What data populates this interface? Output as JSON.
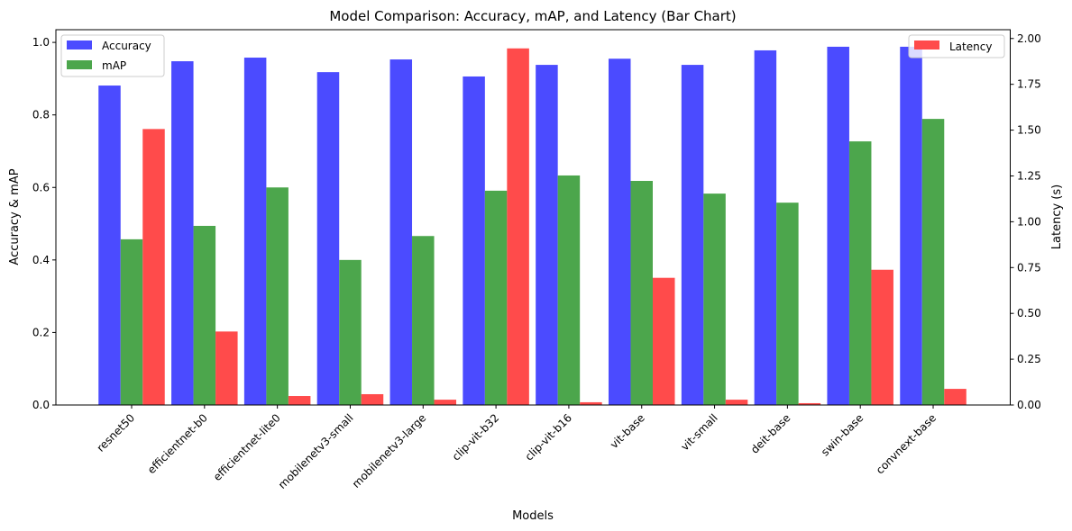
{
  "chart_data": {
    "type": "bar",
    "title": "Model Comparison: Accuracy, mAP, and Latency (Bar Chart)",
    "xlabel": "Models",
    "ylabel": "Accuracy & mAP",
    "y2label": "Latency (s)",
    "categories": [
      "resnet50",
      "efficientnet-b0",
      "efficientnet-lite0",
      "mobilenetv3-small",
      "mobilenetv3-large",
      "clip-vit-b32",
      "clip-vit-b16",
      "vit-base",
      "vit-small",
      "deit-base",
      "swin-base",
      "convnext-base"
    ],
    "series": [
      {
        "name": "Accuracy",
        "axis": "left",
        "color": "#4b4bff",
        "values": [
          0.881,
          0.948,
          0.958,
          0.918,
          0.953,
          0.906,
          0.938,
          0.955,
          0.938,
          0.978,
          0.988,
          0.988
        ]
      },
      {
        "name": "mAP",
        "axis": "left",
        "color": "#4ca64c",
        "values": [
          0.457,
          0.494,
          0.6,
          0.4,
          0.466,
          0.591,
          0.633,
          0.618,
          0.583,
          0.558,
          0.727,
          0.789
        ]
      },
      {
        "name": "Latency",
        "axis": "right",
        "color": "#ff4b4b",
        "values": [
          1.506,
          0.401,
          0.049,
          0.059,
          0.029,
          1.946,
          0.015,
          0.694,
          0.029,
          0.01,
          0.738,
          0.088
        ]
      }
    ],
    "ylim": [
      0,
      1.035
    ],
    "y2lim": [
      0,
      2.048
    ],
    "yticks": [
      "0.0",
      "0.2",
      "0.4",
      "0.6",
      "0.8",
      "1.0"
    ],
    "y2ticks": [
      "0.00",
      "0.25",
      "0.50",
      "0.75",
      "1.00",
      "1.25",
      "1.50",
      "1.75",
      "2.00"
    ],
    "legend_left": {
      "placement": "top-left",
      "entries": [
        "Accuracy",
        "mAP"
      ]
    },
    "legend_right": {
      "placement": "top-right",
      "entries": [
        "Latency"
      ]
    },
    "grid": false
  }
}
